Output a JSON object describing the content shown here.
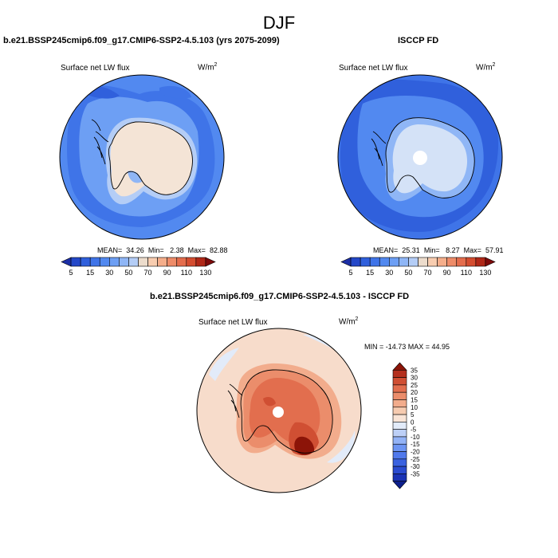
{
  "season": "DJF",
  "colors": {
    "seq": [
      "#1c2fa6",
      "#2448c8",
      "#3060dc",
      "#3f74e8",
      "#5289f0",
      "#6d9ff4",
      "#8fb6f6",
      "#b4cdf6",
      "#ecdccc",
      "#f8cdb0",
      "#f5ae8b",
      "#ee8c69",
      "#e46d4d",
      "#d44d30",
      "#b02818",
      "#7e0a0a"
    ],
    "div": [
      "#0d1f8c",
      "#1a33b5",
      "#2a4bd0",
      "#3a62e0",
      "#5079ec",
      "#6d95f3",
      "#93b3f7",
      "#bdd0f7",
      "#e2ebf9",
      "#f9e4d6",
      "#f6cbb0",
      "#f2ac8c",
      "#eb8d6b",
      "#e26e4e",
      "#d04f33",
      "#b4301e",
      "#8c1408"
    ],
    "lower_bg": "#f7dccb",
    "ant_light": "#f4e4d6",
    "ant_blueish": "#d4e2f7",
    "hole": "#ffffff"
  },
  "panels": [
    {
      "title": "b.e21.BSSP245cmip6.f09_g17.CMIP6-SSP2-4.5.103 (yrs 2075-2099)",
      "variable": "Surface net LW flux",
      "units_base": "W/m",
      "units_exp": "2",
      "mean_label": "MEAN=",
      "mean": "34.26",
      "min_label": "Min=",
      "min": "2.38",
      "max_label": "Max=",
      "max": "82.88",
      "colorbar_labels": [
        "5",
        "15",
        "30",
        "50",
        "70",
        "90",
        "110",
        "130"
      ]
    },
    {
      "title": "ISCCP FD",
      "variable": "Surface net LW flux",
      "units_base": "W/m",
      "units_exp": "2",
      "mean_label": "MEAN=",
      "mean": "25.31",
      "min_label": "Min=",
      "min": "8.27",
      "max_label": "Max=",
      "max": "57.91",
      "colorbar_labels": [
        "5",
        "15",
        "30",
        "50",
        "70",
        "90",
        "110",
        "130"
      ]
    },
    {
      "title": "b.e21.BSSP245cmip6.f09_g17.CMIP6-SSP2-4.5.103 - ISCCP FD",
      "variable": "Surface net LW flux",
      "units_base": "W/m",
      "units_exp": "2",
      "minmax_text": "MIN = -14.73 MAX =  44.95",
      "colorbar_labels": [
        "35",
        "30",
        "25",
        "20",
        "15",
        "10",
        "5",
        "0",
        "-5",
        "-10",
        "-15",
        "-20",
        "-25",
        "-30",
        "-35"
      ]
    }
  ],
  "chart_data": [
    {
      "type": "heatmap",
      "title": "b.e21.BSSP245cmip6.f09_g17.CMIP6-SSP2-4.5.103 (yrs 2075-2099)",
      "projection": "south polar stereographic",
      "variable": "Surface net LW flux",
      "units": "W/m^2",
      "season": "DJF",
      "mean": 34.26,
      "min": 2.38,
      "max": 82.88,
      "contour_levels": [
        5,
        10,
        15,
        20,
        25,
        30,
        40,
        50,
        60,
        70,
        80,
        90,
        100,
        110,
        120,
        130
      ]
    },
    {
      "type": "heatmap",
      "title": "ISCCP FD",
      "projection": "south polar stereographic",
      "variable": "Surface net LW flux",
      "units": "W/m^2",
      "season": "DJF",
      "mean": 25.31,
      "min": 8.27,
      "max": 57.91,
      "contour_levels": [
        5,
        10,
        15,
        20,
        25,
        30,
        40,
        50,
        60,
        70,
        80,
        90,
        100,
        110,
        120,
        130
      ]
    },
    {
      "type": "heatmap",
      "title": "b.e21.BSSP245cmip6.f09_g17.CMIP6-SSP2-4.5.103 - ISCCP FD",
      "projection": "south polar stereographic",
      "variable": "Surface net LW flux",
      "units": "W/m^2",
      "season": "DJF",
      "min": -14.73,
      "max": 44.95,
      "contour_levels": [
        -35,
        -30,
        -25,
        -20,
        -15,
        -10,
        -5,
        0,
        5,
        10,
        15,
        20,
        25,
        30,
        35
      ]
    }
  ]
}
